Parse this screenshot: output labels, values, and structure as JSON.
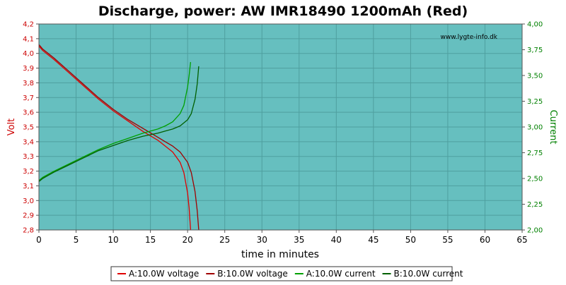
{
  "chart_data": {
    "type": "line",
    "title": "Discharge, power: AW IMR18490 1200mAh (Red)",
    "watermark": "www.lygte-info.dk",
    "xlabel": "time in minutes",
    "ylabel_left": "Volt",
    "ylabel_right": "Current",
    "xlim": [
      0,
      65
    ],
    "ylim_left": [
      2.8,
      4.2
    ],
    "ylim_right": [
      2.0,
      4.0
    ],
    "x_ticks": [
      "0",
      "5",
      "10",
      "15",
      "20",
      "25",
      "30",
      "35",
      "40",
      "45",
      "50",
      "55",
      "60",
      "65"
    ],
    "y_left_ticks": [
      "2,8",
      "2,9",
      "3,0",
      "3,1",
      "3,2",
      "3,3",
      "3,4",
      "3,5",
      "3,6",
      "3,7",
      "3,8",
      "3,9",
      "4,0",
      "4,1",
      "4,2"
    ],
    "y_right_ticks": [
      "2,00",
      "2,25",
      "2,50",
      "2,75",
      "3,00",
      "3,25",
      "3,50",
      "3,75",
      "4,00"
    ],
    "grid": true,
    "legend_position": "bottom",
    "colors": {
      "plot_bg": "#66bfbf",
      "grid": "#4f9f9f",
      "voltage_a": "#e00000",
      "voltage_b": "#a00000",
      "current_a": "#00a000",
      "current_b": "#006000"
    },
    "series": [
      {
        "name": "A:10.0W voltage",
        "axis": "left",
        "color": "#e00000",
        "x": [
          0,
          0.5,
          1,
          2,
          4,
          6,
          8,
          10,
          12,
          14,
          16,
          17,
          18,
          19,
          19.5,
          20,
          20.2,
          20.4
        ],
        "y": [
          4.05,
          4.02,
          4.0,
          3.96,
          3.87,
          3.78,
          3.69,
          3.61,
          3.54,
          3.47,
          3.41,
          3.37,
          3.33,
          3.26,
          3.19,
          3.05,
          2.95,
          2.8
        ]
      },
      {
        "name": "B:10.0W voltage",
        "axis": "left",
        "color": "#a00000",
        "x": [
          0,
          0.5,
          1,
          2,
          4,
          6,
          8,
          10,
          12,
          14,
          16,
          17,
          18,
          19,
          20,
          20.5,
          21,
          21.3,
          21.5
        ],
        "y": [
          4.06,
          4.03,
          4.01,
          3.97,
          3.88,
          3.79,
          3.7,
          3.62,
          3.55,
          3.49,
          3.43,
          3.4,
          3.37,
          3.33,
          3.26,
          3.19,
          3.06,
          2.93,
          2.8
        ]
      },
      {
        "name": "A:10.0W current",
        "axis": "right",
        "color": "#00a000",
        "x": [
          0,
          0.5,
          1,
          2,
          4,
          6,
          8,
          10,
          12,
          14,
          16,
          17,
          18,
          19,
          19.5,
          20,
          20.2,
          20.4
        ],
        "y": [
          2.48,
          2.51,
          2.53,
          2.57,
          2.64,
          2.71,
          2.78,
          2.84,
          2.89,
          2.94,
          2.98,
          3.01,
          3.05,
          3.13,
          3.21,
          3.39,
          3.5,
          3.63
        ]
      },
      {
        "name": "B:10.0W current",
        "axis": "right",
        "color": "#006000",
        "x": [
          0,
          0.5,
          1,
          2,
          4,
          6,
          8,
          10,
          12,
          14,
          16,
          17,
          18,
          19,
          20,
          20.5,
          21,
          21.3,
          21.5
        ],
        "y": [
          2.47,
          2.5,
          2.52,
          2.56,
          2.63,
          2.7,
          2.77,
          2.82,
          2.87,
          2.91,
          2.94,
          2.96,
          2.98,
          3.01,
          3.07,
          3.13,
          3.27,
          3.42,
          3.59
        ]
      }
    ]
  }
}
